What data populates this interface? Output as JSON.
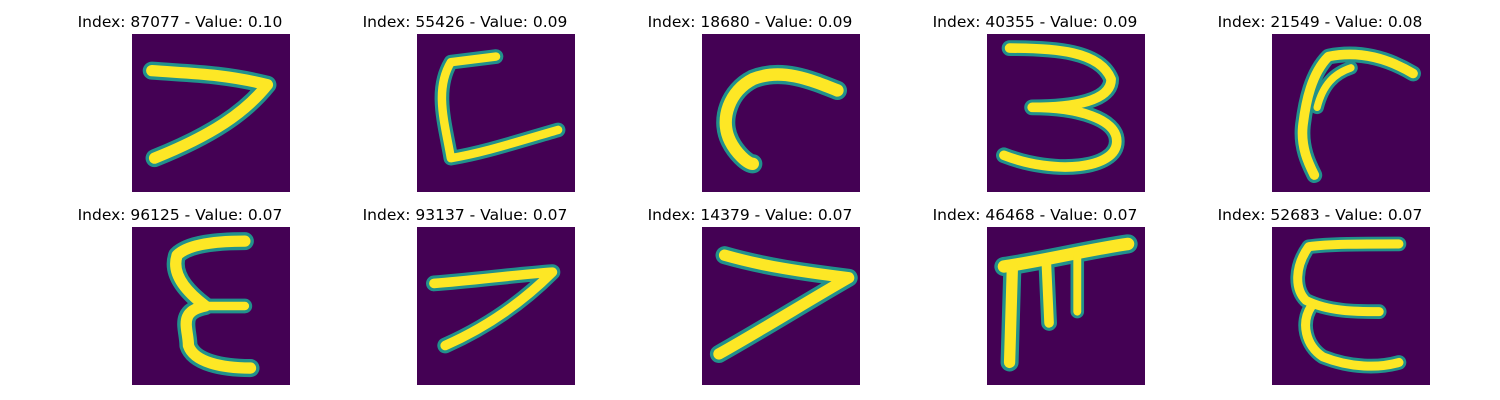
{
  "colors": {
    "background": "#440154",
    "mid": "#21918c",
    "high": "#fde725",
    "title_text": "#000000"
  },
  "panels": [
    {
      "index": "87077",
      "value": "0.10",
      "title": "Index: 87077 - Value: 0.10",
      "glyph": "seven-like handwritten stroke"
    },
    {
      "index": "55426",
      "value": "0.09",
      "title": "Index: 55426 - Value: 0.09",
      "glyph": "L-like handwritten stroke"
    },
    {
      "index": "18680",
      "value": "0.09",
      "title": "Index: 18680 - Value: 0.09",
      "glyph": "curved hook stroke"
    },
    {
      "index": "40355",
      "value": "0.09",
      "title": "Index: 40355 - Value: 0.09",
      "glyph": "three-like handwritten stroke"
    },
    {
      "index": "21549",
      "value": "0.08",
      "title": "Index: 21549 - Value: 0.08",
      "glyph": "arrow-like handwritten stroke"
    },
    {
      "index": "96125",
      "value": "0.07",
      "title": "Index: 96125 - Value: 0.07",
      "glyph": "epsilon-like handwritten stroke"
    },
    {
      "index": "93137",
      "value": "0.07",
      "title": "Index: 93137 - Value: 0.07",
      "glyph": "seven-like handwritten stroke"
    },
    {
      "index": "14379",
      "value": "0.07",
      "title": "Index: 14379 - Value: 0.07",
      "glyph": "greater-than-like handwritten stroke"
    },
    {
      "index": "46468",
      "value": "0.07",
      "title": "Index: 46468 - Value: 0.07",
      "glyph": "pi-like handwritten stroke"
    },
    {
      "index": "52683",
      "value": "0.07",
      "title": "Index: 52683 - Value: 0.07",
      "glyph": "E-like handwritten stroke"
    }
  ]
}
